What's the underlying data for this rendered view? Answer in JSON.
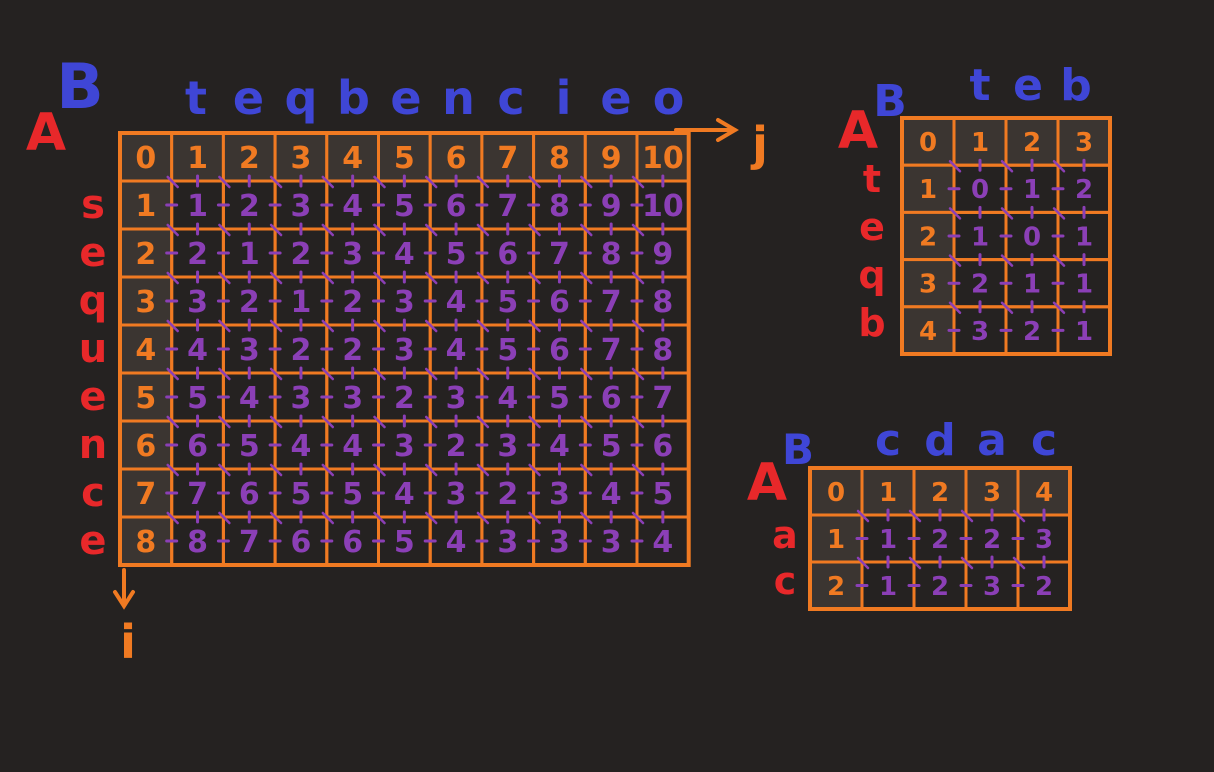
{
  "colors": {
    "background": "#252221",
    "grid": "#f07a22",
    "base_cell": "#3b3531",
    "purple": "#8b3fb6",
    "red": "#e8282a",
    "blue": "#3f46d6",
    "arrow": "#f07a22"
  },
  "tables": [
    {
      "id": "large",
      "label_a": "A",
      "label_b": "B",
      "string_b": [
        "t",
        "e",
        "q",
        "b",
        "e",
        "n",
        "c",
        "i",
        "e",
        "o"
      ],
      "string_a": [
        "s",
        "e",
        "q",
        "u",
        "e",
        "n",
        "c",
        "e"
      ],
      "axis_j": "j",
      "axis_i": "i",
      "matrix": [
        [
          "0",
          "1",
          "2",
          "3",
          "4",
          "5",
          "6",
          "7",
          "8",
          "9",
          "10"
        ],
        [
          "1",
          "1",
          "2",
          "3",
          "4",
          "5",
          "6",
          "7",
          "8",
          "9",
          "10"
        ],
        [
          "2",
          "2",
          "1",
          "2",
          "3",
          "4",
          "5",
          "6",
          "7",
          "8",
          "9"
        ],
        [
          "3",
          "3",
          "2",
          "1",
          "2",
          "3",
          "4",
          "5",
          "6",
          "7",
          "8"
        ],
        [
          "4",
          "4",
          "3",
          "2",
          "2",
          "3",
          "4",
          "5",
          "6",
          "7",
          "8"
        ],
        [
          "5",
          "5",
          "4",
          "3",
          "3",
          "2",
          "3",
          "4",
          "5",
          "6",
          "7"
        ],
        [
          "6",
          "6",
          "5",
          "4",
          "4",
          "3",
          "2",
          "3",
          "4",
          "5",
          "6"
        ],
        [
          "7",
          "7",
          "6",
          "5",
          "5",
          "4",
          "3",
          "2",
          "3",
          "4",
          "5"
        ],
        [
          "8",
          "8",
          "7",
          "6",
          "6",
          "5",
          "4",
          "3",
          "3",
          "3",
          "4"
        ]
      ]
    },
    {
      "id": "teb",
      "label_a": "A",
      "label_b": "B",
      "string_b": [
        "t",
        "e",
        "b"
      ],
      "string_a": [
        "t",
        "e",
        "q",
        "b"
      ],
      "matrix": [
        [
          "0",
          "1",
          "2",
          "3"
        ],
        [
          "1",
          "0",
          "1",
          "2"
        ],
        [
          "2",
          "1",
          "0",
          "1"
        ],
        [
          "3",
          "2",
          "1",
          "1"
        ],
        [
          "4",
          "3",
          "2",
          "1"
        ]
      ]
    },
    {
      "id": "cdac",
      "label_a": "A",
      "label_b": "B",
      "string_b": [
        "c",
        "d",
        "a",
        "c"
      ],
      "string_a": [
        "a",
        "c"
      ],
      "matrix": [
        [
          "0",
          "1",
          "2",
          "3",
          "4"
        ],
        [
          "1",
          "1",
          "2",
          "2",
          "3"
        ],
        [
          "2",
          "1",
          "2",
          "3",
          "2"
        ]
      ]
    }
  ]
}
